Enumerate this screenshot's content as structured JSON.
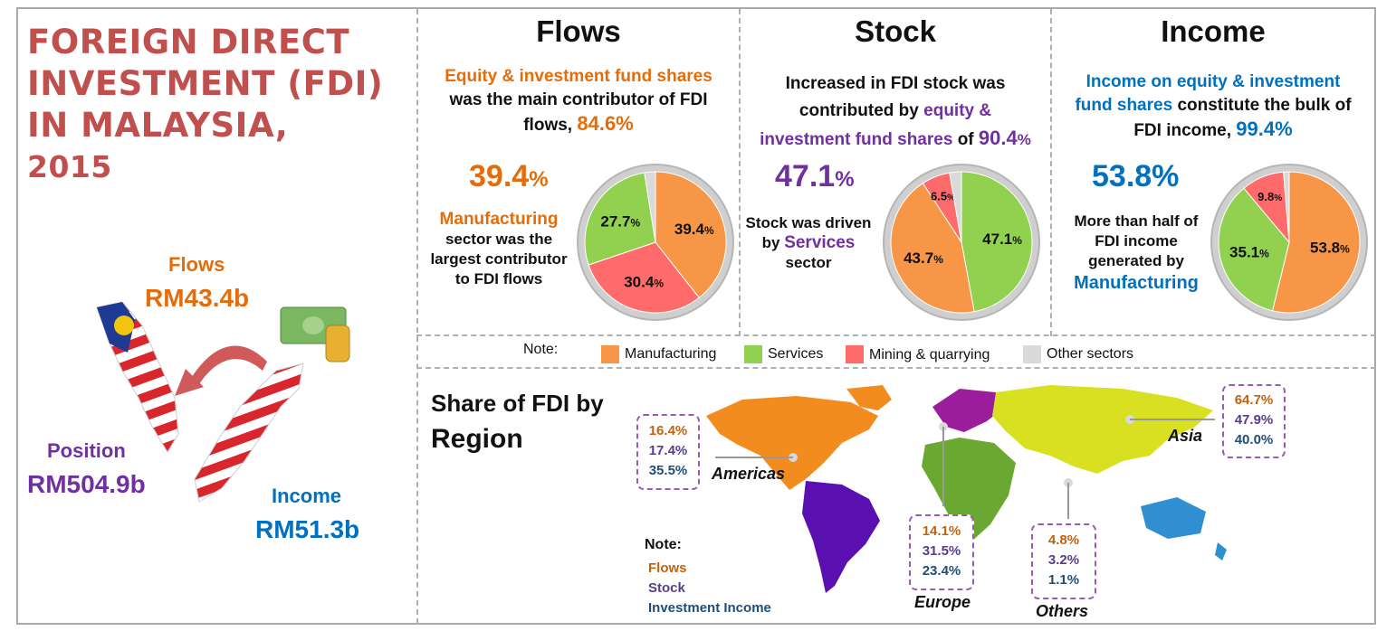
{
  "title_lines": [
    "FOREIGN DIRECT",
    "INVESTMENT (FDI)",
    "IN MALAYSIA,",
    "2015"
  ],
  "left": {
    "flows_label": "Flows",
    "flows_value": "RM43.4b",
    "position_label": "Position",
    "position_value": "RM504.9b",
    "income_label": "Income",
    "income_value": "RM51.3b"
  },
  "flows": {
    "title": "Flows",
    "line1": "Equity & investment fund shares",
    "line2": "was the main contributor of FDI",
    "line3": "flows,",
    "line3_pct": "84.6%",
    "big_pct": "39.4",
    "pct_sign": "%",
    "side_hl": "Manufacturing",
    "side_rest": [
      "sector was the",
      "largest contributor",
      "to FDI flows"
    ]
  },
  "stock": {
    "title": "Stock",
    "line1": "Increased in FDI stock was",
    "line2a": "contributed by",
    "line2b": "equity &",
    "line3a": "investment fund shares",
    "line3b": "of",
    "line3_pct": "90.4",
    "big_pct": "47.1",
    "pct_sign": "%",
    "side1": "Stock was driven",
    "side2a": "by",
    "side2b": "Services",
    "side3": "sector"
  },
  "income": {
    "title": "Income",
    "line1": "Income on equity & investment",
    "line2a": "fund shares",
    "line2b": "constitute the bulk of",
    "line3": "FDI income,",
    "line3_pct": "99.4%",
    "big_pct": "53.8%",
    "side": [
      "More than half of",
      "FDI income",
      "generated by"
    ],
    "side_hl": "Manufacturing"
  },
  "legend": {
    "note": "Note:",
    "items": [
      {
        "label": "Manufacturing",
        "color": "#f79646"
      },
      {
        "label": "Services",
        "color": "#92d050"
      },
      {
        "label": "Mining & quarrying",
        "color": "#ff6b6b"
      },
      {
        "label": "Other sectors",
        "color": "#d9d9d9"
      }
    ]
  },
  "region": {
    "title1": "Share of FDI by",
    "title2": "Region",
    "note": "Note:",
    "note_items": [
      "Flows",
      "Stock",
      "Investment Income"
    ],
    "americas": {
      "label": "Americas",
      "values": [
        "16.4%",
        "17.4%",
        "35.5%"
      ]
    },
    "europe": {
      "label": "Europe",
      "values": [
        "14.1%",
        "31.5%",
        "23.4%"
      ]
    },
    "others": {
      "label": "Others",
      "values": [
        "4.8%",
        "3.2%",
        "1.1%"
      ]
    },
    "asia": {
      "label": "Asia",
      "values": [
        "64.7%",
        "47.9%",
        "40.0%"
      ]
    }
  },
  "chart_data": [
    {
      "type": "pie",
      "title": "Flows",
      "categories": [
        "Manufacturing",
        "Mining & quarrying",
        "Services",
        "Other sectors"
      ],
      "values": [
        39.4,
        30.4,
        27.7,
        2.5
      ],
      "labels": [
        "39.4",
        "30.4",
        "27.7",
        ""
      ],
      "unit": "%",
      "colors": [
        "#f79646",
        "#ff6b6b",
        "#92d050",
        "#d9d9d9"
      ]
    },
    {
      "type": "pie",
      "title": "Stock",
      "categories": [
        "Services",
        "Manufacturing",
        "Mining & quarrying",
        "Other sectors"
      ],
      "values": [
        47.1,
        43.7,
        6.5,
        2.7
      ],
      "labels": [
        "47.1",
        "43.7",
        "6.5",
        ""
      ],
      "unit": "%",
      "colors": [
        "#92d050",
        "#f79646",
        "#ff6b6b",
        "#d9d9d9"
      ]
    },
    {
      "type": "pie",
      "title": "Income",
      "categories": [
        "Manufacturing",
        "Services",
        "Mining & quarrying",
        "Other sectors"
      ],
      "values": [
        53.8,
        35.1,
        9.8,
        1.3
      ],
      "labels": [
        "53.8",
        "35.1",
        "9.8",
        ""
      ],
      "unit": "%",
      "colors": [
        "#f79646",
        "#92d050",
        "#ff6b6b",
        "#d9d9d9"
      ]
    }
  ]
}
